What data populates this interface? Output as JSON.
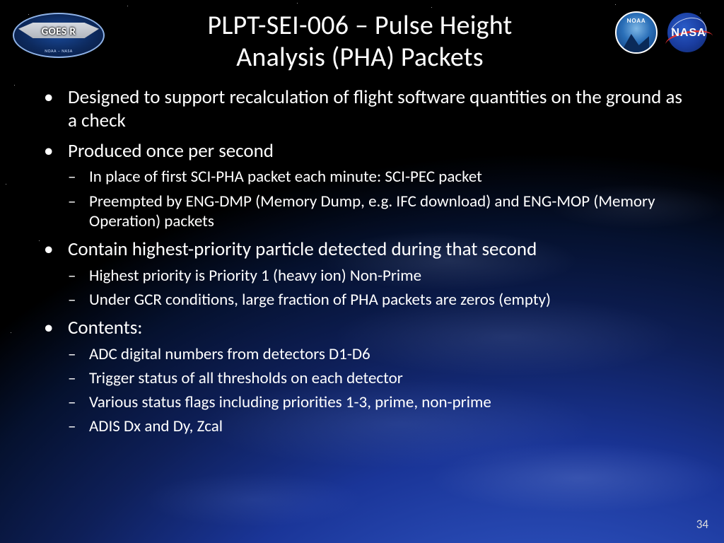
{
  "slide": {
    "title_line1": "PLPT-SEI-006 – Pulse Height",
    "title_line2": "Analysis (PHA) Packets",
    "page_number": "34"
  },
  "logos": {
    "goesr_text": "GOES R",
    "goesr_sub": "NOAA – NASA",
    "noaa_text": "NOAA",
    "nasa_text": "NASA"
  },
  "bullets": [
    {
      "text": "Designed to support recalculation of flight software quantities on the ground as a check",
      "sub": []
    },
    {
      "text": "Produced once per second",
      "sub": [
        "In place of first SCI-PHA packet each minute: SCI-PEC packet",
        "Preempted by ENG-DMP (Memory Dump, e.g. IFC download) and ENG-MOP (Memory Operation) packets"
      ]
    },
    {
      "text": "Contain highest-priority particle detected during that second",
      "sub": [
        "Highest priority is Priority 1 (heavy ion) Non-Prime",
        "Under GCR conditions, large fraction of PHA packets are zeros (empty)"
      ]
    },
    {
      "text": "Contents:",
      "sub": [
        "ADC digital numbers from detectors D1-D6",
        "Trigger status of all thresholds on each detector",
        "Various status flags including priorities 1-3, prime, non-prime",
        "ADIS Dx and Dy, Zcal"
      ]
    }
  ],
  "style": {
    "text_color": "#ffffff",
    "title_fontsize": 38,
    "l1_fontsize": 27,
    "l2_fontsize": 23,
    "background_black": "#000000",
    "earth_blue_light": "#4a6fd8",
    "earth_blue_mid": "#1a3598",
    "earth_blue_dark": "#05112e"
  }
}
